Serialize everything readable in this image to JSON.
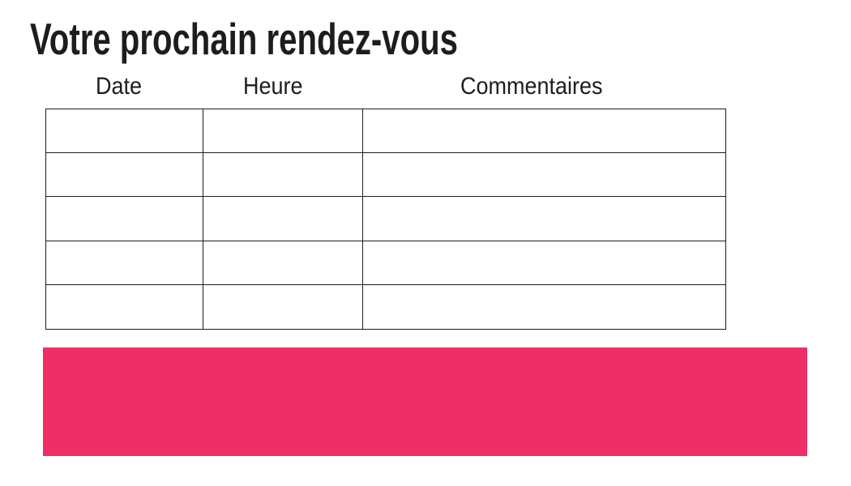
{
  "page": {
    "title": "Votre prochain rendez-vous"
  },
  "table": {
    "headers": [
      "Date",
      "Heure",
      "Commentaires"
    ],
    "rows": [
      [
        "",
        "",
        ""
      ],
      [
        "",
        "",
        ""
      ],
      [
        "",
        "",
        ""
      ],
      [
        "",
        "",
        ""
      ],
      [
        "",
        "",
        ""
      ]
    ]
  },
  "colors": {
    "banner": "#ED2E67",
    "text": "#1D1D1B",
    "table_border": "#1D1D1B"
  }
}
